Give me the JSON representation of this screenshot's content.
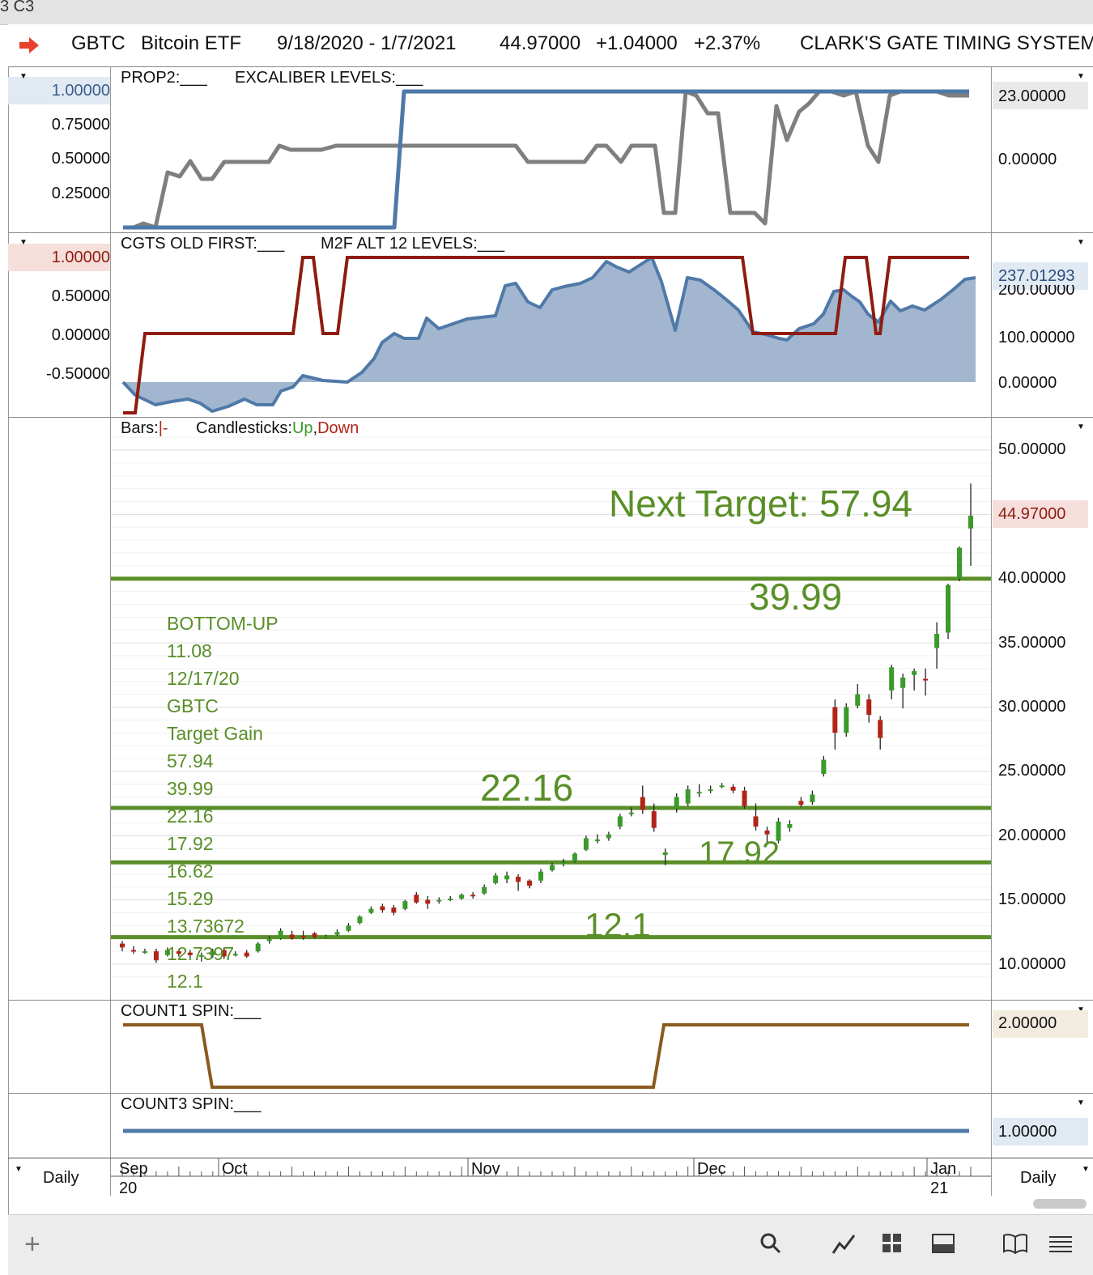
{
  "window": {
    "title_fragment": "3 C3"
  },
  "header": {
    "symbol": "GBTC",
    "name": "Bitcoin ETF",
    "date_range": "9/18/2020 - 1/7/2021",
    "price": "44.97000",
    "change": "+1.04000",
    "change_pct": "+2.37%",
    "system": "CLARK'S GATE TIMING SYSTEM"
  },
  "panels": {
    "prop2": {
      "label1": "PROP2:___",
      "label2": "EXCALIBER LEVELS:___",
      "left_ticks": [
        "1.00000",
        "0.75000",
        "0.50000",
        "0.25000"
      ],
      "right_ticks": [
        "23.00000",
        "0.00000"
      ],
      "colors": {
        "prop2": "#7f7f7f",
        "excaliber": "#4f79a8"
      }
    },
    "cgts": {
      "label1": "CGTS OLD FIRST:___",
      "label2": "M2F ALT 12 LEVELS:___",
      "left_ticks": [
        "1.00000",
        "0.50000",
        "0.00000",
        "-0.50000"
      ],
      "right_ticks": [
        "237.01293",
        "200.00000",
        "100.00000",
        "0.00000"
      ],
      "colors": {
        "old_first": "#8e1c10",
        "m2f": "#4f79a8",
        "fill": "#a3b6cf"
      }
    },
    "price": {
      "label_bars": "Bars:",
      "label_bars_sym": "|-",
      "label_candles": "Candlesticks:",
      "label_up": "Up",
      "label_down": "Down",
      "right_ticks": [
        "50.00000",
        "44.97000",
        "40.00000",
        "35.00000",
        "30.00000",
        "25.00000",
        "20.00000",
        "15.00000",
        "10.00000"
      ],
      "next_target": "Next Target: 57.94",
      "levels": [
        "39.99",
        "22.16",
        "17.92",
        "12.1"
      ],
      "notes": [
        "BOTTOM-UP",
        "11.08",
        "12/17/20",
        "GBTC",
        "Target Gain",
        "57.94",
        "39.99",
        "22.16",
        "17.92",
        "16.62",
        "15.29",
        "13.73672",
        "12.7397",
        "12.1"
      ],
      "colors": {
        "up": "#3a9a2a",
        "down": "#b22418",
        "level": "#5a8f28",
        "text": "#5a8f28"
      }
    },
    "count1": {
      "label": "COUNT1 SPIN:___",
      "right_tick": "2.00000",
      "color": "#8a5a1e"
    },
    "count3": {
      "label": "COUNT3 SPIN:___",
      "right_tick": "1.00000",
      "color": "#4f79a8"
    }
  },
  "x_axis": {
    "months": [
      {
        "m": "Sep",
        "y": "20"
      },
      {
        "m": "Oct",
        "y": ""
      },
      {
        "m": "Nov",
        "y": ""
      },
      {
        "m": "Dec",
        "y": ""
      },
      {
        "m": "Jan",
        "y": "21"
      }
    ],
    "left_period": "Daily",
    "right_period": "Daily"
  },
  "chart_data": {
    "type": "bar",
    "title": "",
    "xlabel": "",
    "ylabel": "",
    "ylim": [
      8,
      53
    ],
    "levels": [
      39.99,
      22.16,
      17.92,
      12.1
    ],
    "series": [
      {
        "name": "Up",
        "values": []
      },
      {
        "name": "Down",
        "values": []
      }
    ],
    "candles": [
      [
        11.6,
        11.3,
        11.8,
        11.0
      ],
      [
        11.1,
        11.0,
        11.4,
        10.8
      ],
      [
        11.0,
        11.0,
        11.2,
        10.8
      ],
      [
        11.0,
        10.3,
        11.2,
        10.1
      ],
      [
        10.7,
        11.1,
        11.3,
        10.6
      ],
      [
        11.0,
        10.8,
        11.2,
        10.6
      ],
      [
        10.9,
        10.7,
        11.1,
        10.5
      ],
      [
        10.7,
        10.7,
        10.9,
        10.2
      ],
      [
        10.7,
        11.0,
        11.2,
        10.5
      ],
      [
        11.1,
        10.6,
        11.3,
        10.4
      ],
      [
        10.8,
        10.8,
        11.0,
        10.6
      ],
      [
        10.9,
        10.6,
        11.1,
        10.5
      ],
      [
        11.0,
        11.6,
        11.7,
        10.9
      ],
      [
        11.8,
        12.0,
        12.2,
        11.6
      ],
      [
        12.0,
        12.6,
        12.8,
        11.9
      ],
      [
        12.3,
        12.0,
        12.6,
        11.9
      ],
      [
        12.2,
        12.1,
        12.6,
        11.9
      ],
      [
        12.4,
        12.1,
        12.5,
        12.0
      ],
      [
        12.2,
        12.2,
        12.3,
        12.0
      ],
      [
        12.3,
        12.5,
        12.7,
        12.2
      ],
      [
        12.6,
        13.0,
        13.2,
        12.5
      ],
      [
        13.2,
        13.7,
        13.8,
        13.1
      ],
      [
        14.0,
        14.3,
        14.5,
        13.9
      ],
      [
        14.5,
        14.2,
        14.7,
        14.0
      ],
      [
        14.4,
        14.0,
        14.6,
        13.8
      ],
      [
        14.3,
        14.9,
        15.0,
        14.2
      ],
      [
        15.4,
        14.8,
        15.6,
        14.7
      ],
      [
        15.0,
        14.7,
        15.3,
        14.3
      ],
      [
        14.9,
        15.0,
        15.2,
        14.7
      ],
      [
        15.0,
        15.1,
        15.3,
        14.9
      ],
      [
        15.1,
        15.4,
        15.5,
        15.0
      ],
      [
        15.4,
        15.3,
        15.6,
        15.1
      ],
      [
        15.5,
        16.0,
        16.2,
        15.4
      ],
      [
        16.3,
        16.9,
        17.1,
        16.2
      ],
      [
        16.6,
        16.9,
        17.2,
        16.3
      ],
      [
        16.8,
        16.4,
        17.0,
        15.7
      ],
      [
        16.5,
        16.1,
        16.6,
        15.9
      ],
      [
        16.5,
        17.2,
        17.4,
        16.3
      ],
      [
        17.3,
        17.7,
        17.9,
        17.2
      ],
      [
        17.8,
        17.9,
        18.2,
        17.6
      ],
      [
        18.0,
        18.6,
        18.7,
        17.9
      ],
      [
        18.9,
        19.8,
        20.0,
        18.8
      ],
      [
        19.6,
        19.7,
        20.1,
        19.4
      ],
      [
        19.8,
        20.1,
        20.3,
        19.6
      ],
      [
        20.7,
        21.5,
        21.7,
        20.5
      ],
      [
        21.7,
        21.8,
        22.2,
        21.5
      ],
      [
        23.0,
        22.0,
        23.9,
        21.7
      ],
      [
        21.9,
        20.6,
        22.5,
        20.3
      ],
      [
        18.5,
        18.7,
        19.0,
        17.7
      ],
      [
        22.1,
        23.0,
        23.3,
        21.8
      ],
      [
        22.5,
        23.6,
        23.9,
        22.3
      ],
      [
        23.4,
        23.4,
        24.0,
        23.0
      ],
      [
        23.6,
        23.6,
        23.9,
        23.3
      ],
      [
        23.9,
        23.9,
        24.1,
        23.7
      ],
      [
        23.8,
        23.5,
        24.0,
        23.3
      ],
      [
        23.5,
        22.3,
        23.8,
        22.1
      ],
      [
        21.5,
        20.7,
        22.5,
        20.4
      ],
      [
        20.4,
        20.1,
        20.7,
        19.3
      ],
      [
        19.6,
        21.1,
        21.4,
        19.4
      ],
      [
        20.6,
        20.9,
        21.2,
        20.3
      ],
      [
        22.7,
        22.4,
        23.0,
        22.2
      ],
      [
        22.6,
        23.2,
        23.5,
        22.4
      ],
      [
        24.8,
        25.9,
        26.2,
        24.6
      ],
      [
        30.0,
        28.0,
        30.6,
        26.7
      ],
      [
        28.0,
        30.0,
        30.3,
        27.7
      ],
      [
        30.1,
        31.0,
        31.8,
        29.9
      ],
      [
        30.6,
        29.4,
        31.0,
        28.8
      ],
      [
        29.0,
        27.6,
        29.3,
        26.7
      ],
      [
        31.3,
        33.1,
        33.3,
        30.6
      ],
      [
        31.5,
        32.3,
        32.6,
        29.9
      ],
      [
        32.5,
        32.8,
        33.0,
        31.3
      ],
      [
        32.2,
        32.1,
        33.0,
        30.9
      ],
      [
        34.6,
        35.7,
        36.6,
        33.0
      ],
      [
        35.8,
        39.5,
        39.6,
        35.3
      ],
      [
        40.0,
        42.4,
        42.5,
        39.8
      ],
      [
        43.9,
        44.9,
        47.4,
        41.0
      ]
    ]
  }
}
